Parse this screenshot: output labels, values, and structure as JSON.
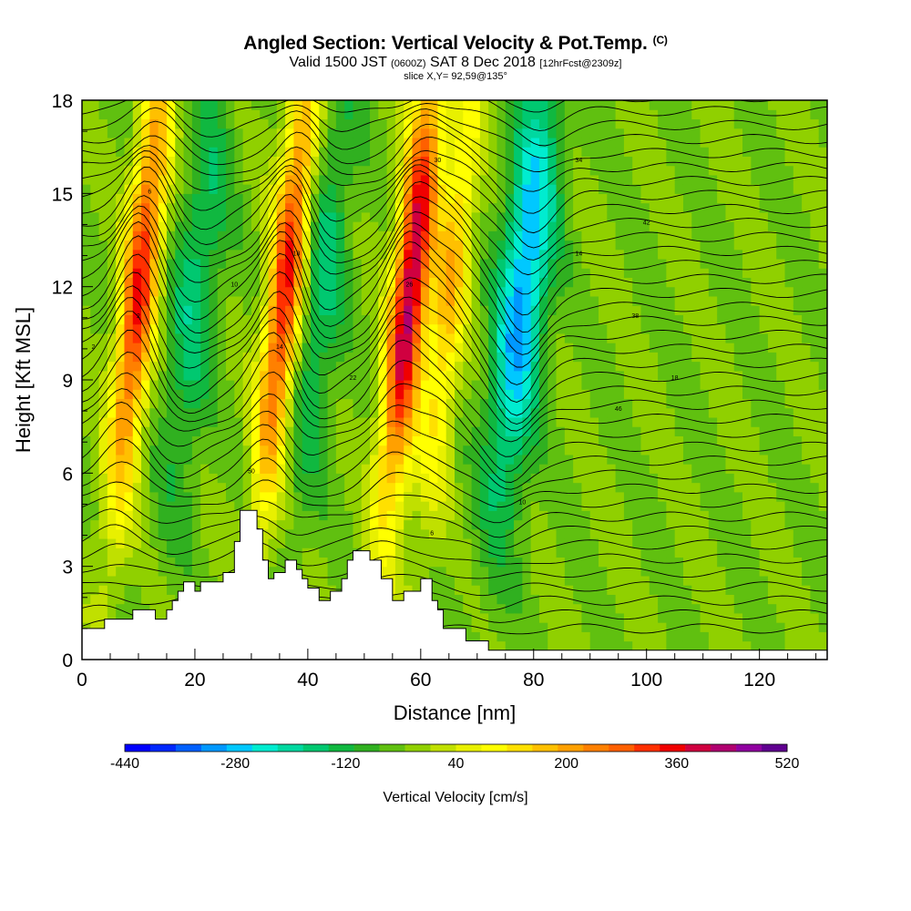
{
  "header": {
    "title": "Angled Section: Vertical Velocity & Pot.Temp.",
    "title_unit": "(C)",
    "valid_prefix": "Valid 1500 JST",
    "valid_utc": "(0600Z)",
    "valid_date": "SAT 8 Dec 2018",
    "forecast": "[12hrFcst@2309z]",
    "slice": "slice X,Y= 92,59@135°"
  },
  "chart_data": {
    "type": "heatmap",
    "xlabel": "Distance [nm]",
    "ylabel": "Height [Kft MSL]",
    "xlim": [
      0,
      132
    ],
    "ylim": [
      0,
      18
    ],
    "x_ticks": [
      0,
      20,
      40,
      60,
      80,
      100,
      120
    ],
    "y_ticks": [
      0,
      3,
      6,
      9,
      12,
      15,
      18
    ],
    "colorbar": {
      "label": "Vertical Velocity [cm/s]",
      "min": -440,
      "max": 520,
      "step": 40,
      "tick_labels": [
        -440,
        -280,
        -120,
        40,
        200,
        360,
        520
      ],
      "colors": [
        "#0000ff",
        "#0028ff",
        "#0060ff",
        "#0098ff",
        "#00c8ff",
        "#00ecd0",
        "#00d8a0",
        "#00c870",
        "#10b840",
        "#30b020",
        "#60c010",
        "#90d000",
        "#c0e000",
        "#e8f000",
        "#ffff00",
        "#ffe000",
        "#ffc000",
        "#ffa000",
        "#ff8000",
        "#ff6000",
        "#ff3000",
        "#f00000",
        "#d00040",
        "#b00070",
        "#9000a0",
        "#600090"
      ]
    },
    "updraft_bands": [
      {
        "x": 8,
        "peak_cm_s": 400
      },
      {
        "x": 34,
        "peak_cm_s": 420
      },
      {
        "x": 56,
        "peak_cm_s": 500
      },
      {
        "x": 63,
        "peak_cm_s": 220
      }
    ],
    "downdraft_bands": [
      {
        "x": 18,
        "peak_cm_s": -140
      },
      {
        "x": 40,
        "peak_cm_s": -140
      },
      {
        "x": 76,
        "peak_cm_s": -300
      }
    ],
    "terrain_kft": [
      [
        0,
        1
      ],
      [
        4,
        1
      ],
      [
        4,
        1.3
      ],
      [
        9,
        1.3
      ],
      [
        9,
        1.6
      ],
      [
        13,
        1.6
      ],
      [
        13,
        1.3
      ],
      [
        15,
        1.3
      ],
      [
        15,
        1.6
      ],
      [
        16,
        1.6
      ],
      [
        16,
        1.9
      ],
      [
        17,
        1.9
      ],
      [
        17,
        2.2
      ],
      [
        18,
        2.2
      ],
      [
        18,
        2.5
      ],
      [
        20,
        2.5
      ],
      [
        20,
        2.2
      ],
      [
        21,
        2.2
      ],
      [
        21,
        2.5
      ],
      [
        25,
        2.5
      ],
      [
        25,
        2.8
      ],
      [
        27,
        2.8
      ],
      [
        27,
        3.8
      ],
      [
        28,
        3.8
      ],
      [
        28,
        4.8
      ],
      [
        31,
        4.8
      ],
      [
        31,
        4.2
      ],
      [
        32,
        4.2
      ],
      [
        32,
        3.2
      ],
      [
        33,
        3.2
      ],
      [
        33,
        2.6
      ],
      [
        34,
        2.6
      ],
      [
        34,
        2.8
      ],
      [
        36,
        2.8
      ],
      [
        36,
        3.2
      ],
      [
        38,
        3.2
      ],
      [
        38,
        2.9
      ],
      [
        39,
        2.9
      ],
      [
        39,
        2.6
      ],
      [
        40,
        2.6
      ],
      [
        40,
        2.3
      ],
      [
        42,
        2.3
      ],
      [
        42,
        1.9
      ],
      [
        44,
        1.9
      ],
      [
        44,
        2.2
      ],
      [
        46,
        2.2
      ],
      [
        46,
        2.6
      ],
      [
        47,
        2.6
      ],
      [
        47,
        3.2
      ],
      [
        48,
        3.2
      ],
      [
        48,
        3.5
      ],
      [
        51,
        3.5
      ],
      [
        51,
        3.2
      ],
      [
        53,
        3.2
      ],
      [
        53,
        2.6
      ],
      [
        55,
        2.6
      ],
      [
        55,
        1.9
      ],
      [
        57,
        1.9
      ],
      [
        57,
        2.2
      ],
      [
        60,
        2.2
      ],
      [
        60,
        2.6
      ],
      [
        62,
        2.6
      ],
      [
        62,
        1.9
      ],
      [
        63,
        1.9
      ],
      [
        63,
        1.6
      ],
      [
        64,
        1.6
      ],
      [
        64,
        1.0
      ],
      [
        68,
        1.0
      ],
      [
        68,
        0.6
      ],
      [
        72,
        0.6
      ],
      [
        72,
        0.3
      ],
      [
        132,
        0.3
      ]
    ],
    "contour_labels": [
      "2",
      "6",
      "10",
      "14",
      "18",
      "22",
      "26",
      "30",
      "34",
      "38",
      "42",
      "46",
      "50"
    ]
  }
}
